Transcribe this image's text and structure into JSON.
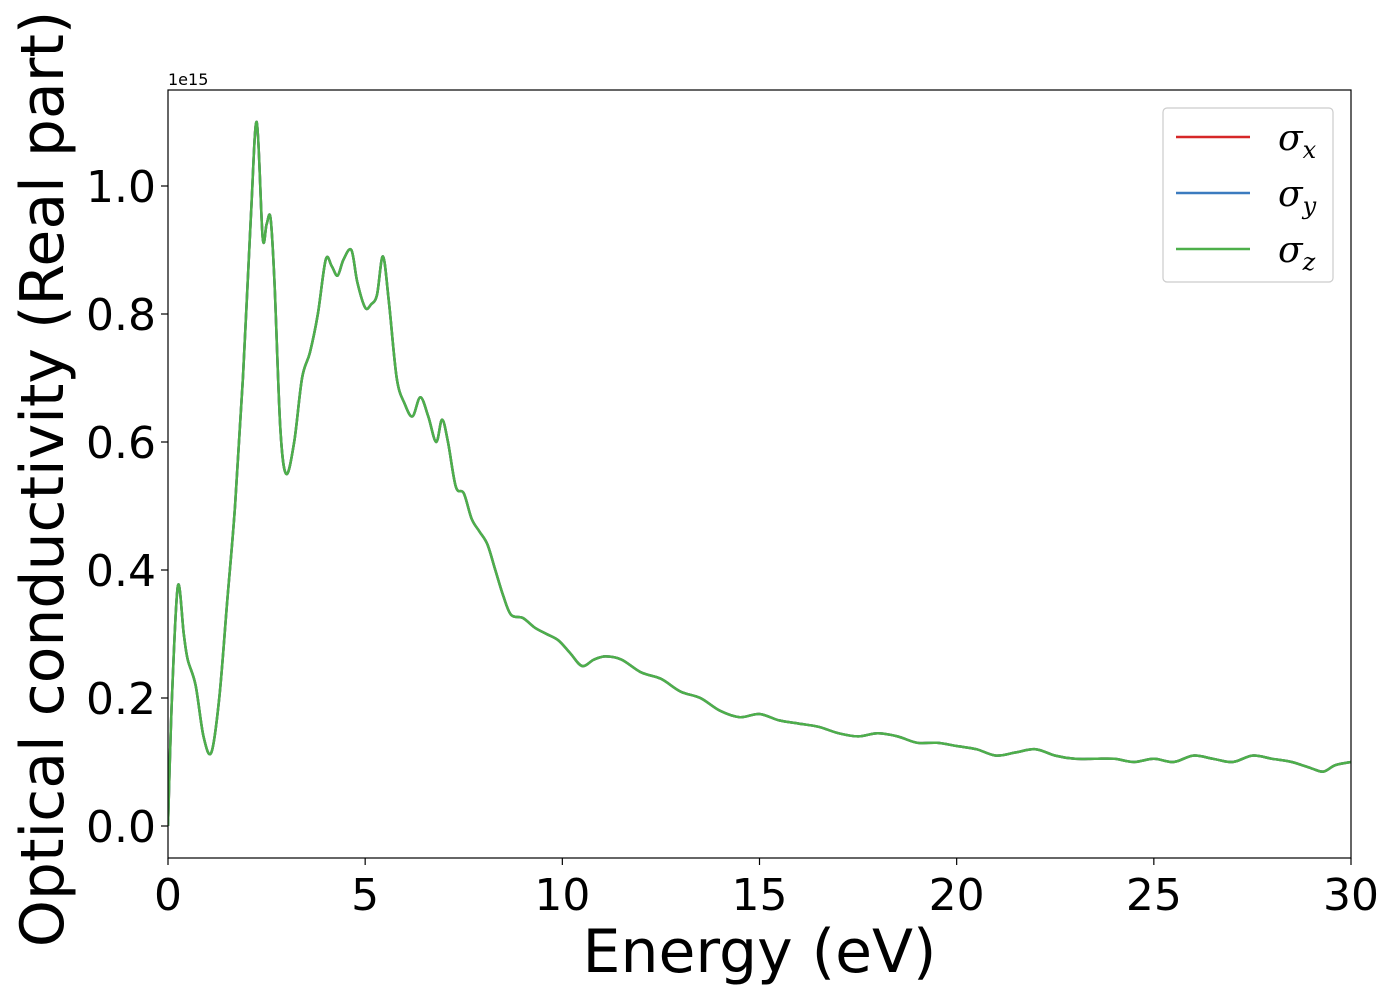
{
  "chart_data": {
    "type": "line",
    "xlabel": "Energy (eV)",
    "ylabel": "Optical conductivity (Real part)",
    "y_offset_text": "1e15",
    "y_scale_multiplier": 1000000000000000.0,
    "xlim": [
      0,
      30
    ],
    "ylim": [
      -0.05,
      1.15
    ],
    "xticks": [
      0,
      5,
      10,
      15,
      20,
      25,
      30
    ],
    "xtick_labels": [
      "0",
      "5",
      "10",
      "15",
      "20",
      "25",
      "30"
    ],
    "yticks": [
      0.0,
      0.2,
      0.4,
      0.6,
      0.8,
      1.0
    ],
    "ytick_labels": [
      "0.0",
      "0.2",
      "0.4",
      "0.6",
      "0.8",
      "1.0"
    ],
    "grid": false,
    "legend_position": "top-right",
    "series": [
      {
        "name": "σx",
        "symbol": "σ",
        "subscript": "x",
        "color": "#d62728"
      },
      {
        "name": "σy",
        "symbol": "σ",
        "subscript": "y",
        "color": "#3b7bbf"
      },
      {
        "name": "σz",
        "symbol": "σ",
        "subscript": "z",
        "color": "#4daf4a"
      }
    ],
    "x": [
      0,
      0.1,
      0.25,
      0.4,
      0.5,
      0.7,
      0.9,
      1.1,
      1.3,
      1.5,
      1.7,
      1.9,
      2.1,
      2.25,
      2.4,
      2.5,
      2.6,
      2.7,
      2.85,
      3.0,
      3.2,
      3.4,
      3.6,
      3.8,
      4.0,
      4.15,
      4.3,
      4.45,
      4.65,
      4.8,
      5.0,
      5.15,
      5.3,
      5.45,
      5.6,
      5.8,
      6.0,
      6.2,
      6.4,
      6.6,
      6.8,
      6.95,
      7.1,
      7.3,
      7.5,
      7.7,
      7.9,
      8.1,
      8.3,
      8.5,
      8.7,
      9.0,
      9.3,
      9.6,
      9.9,
      10.2,
      10.5,
      10.8,
      11.1,
      11.5,
      12.0,
      12.5,
      13.0,
      13.5,
      14.0,
      14.5,
      15.0,
      15.5,
      16.0,
      16.5,
      17.0,
      17.5,
      18.0,
      18.5,
      19.0,
      19.5,
      20.0,
      20.5,
      21.0,
      21.5,
      22.0,
      22.5,
      23.0,
      23.5,
      24.0,
      24.5,
      25.0,
      25.5,
      26.0,
      26.5,
      27.0,
      27.5,
      28.0,
      28.5,
      29.0,
      29.3,
      29.6,
      30.0
    ],
    "y": [
      0.0,
      0.2,
      0.375,
      0.3,
      0.26,
      0.22,
      0.14,
      0.115,
      0.2,
      0.35,
      0.5,
      0.7,
      0.95,
      1.1,
      0.92,
      0.94,
      0.95,
      0.85,
      0.62,
      0.55,
      0.6,
      0.7,
      0.74,
      0.8,
      0.885,
      0.875,
      0.86,
      0.885,
      0.9,
      0.85,
      0.81,
      0.815,
      0.83,
      0.89,
      0.82,
      0.7,
      0.66,
      0.64,
      0.67,
      0.64,
      0.6,
      0.635,
      0.6,
      0.53,
      0.52,
      0.48,
      0.46,
      0.44,
      0.4,
      0.36,
      0.33,
      0.325,
      0.31,
      0.3,
      0.29,
      0.27,
      0.25,
      0.26,
      0.265,
      0.26,
      0.24,
      0.23,
      0.21,
      0.2,
      0.18,
      0.17,
      0.175,
      0.165,
      0.16,
      0.155,
      0.145,
      0.14,
      0.145,
      0.14,
      0.13,
      0.13,
      0.125,
      0.12,
      0.11,
      0.115,
      0.12,
      0.11,
      0.105,
      0.105,
      0.105,
      0.1,
      0.105,
      0.1,
      0.11,
      0.105,
      0.1,
      0.11,
      0.105,
      0.1,
      0.09,
      0.085,
      0.095,
      0.1
    ]
  }
}
